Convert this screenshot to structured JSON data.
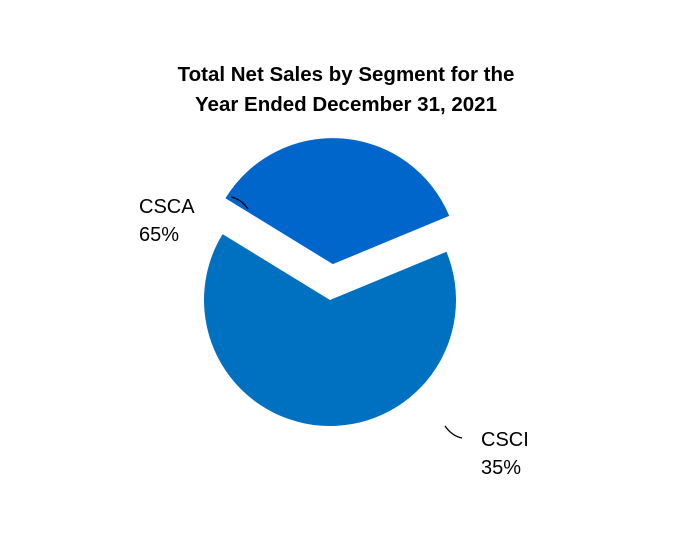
{
  "chart_data": {
    "type": "pie",
    "title": [
      "Total Net Sales by Segment for the",
      "Year Ended December 31, 2021"
    ],
    "slices": [
      {
        "label": "CSCA",
        "value": 65,
        "value_label": "65%",
        "color": "#0070C0",
        "exploded": false
      },
      {
        "label": "CSCI",
        "value": 35,
        "value_label": "35%",
        "color": "#0066CC",
        "exploded": true
      }
    ],
    "legend": "none"
  }
}
